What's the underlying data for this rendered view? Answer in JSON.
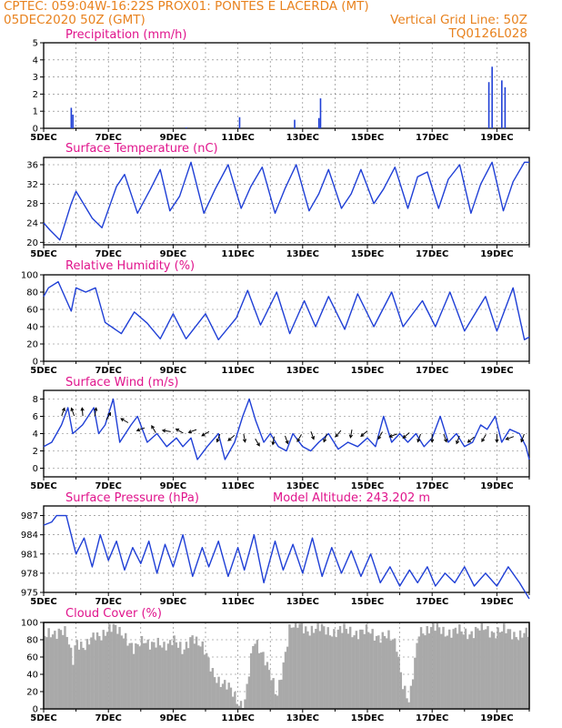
{
  "header": {
    "line1_left": "CPTEC:   059:04W-16:22S   PROX01: PONTES E LACERDA (MT)",
    "line2_left": "05DEC2020 50Z (GMT)",
    "line2_right": "Vertical Grid Line: 50Z",
    "line3_right": "TQ0126L028"
  },
  "colors": {
    "header": "#e8821e",
    "title": "#e0148c",
    "line": "#1f3fd6",
    "cloud": "#a9a9a9",
    "arrow": "#000000"
  },
  "x_ticks": [
    "5DEC",
    "7DEC",
    "9DEC",
    "11DEC",
    "13DEC",
    "15DEC",
    "17DEC",
    "19DEC"
  ],
  "chart_data": [
    {
      "id": "precip",
      "type": "bar",
      "title": "Precipitation (mm/h)",
      "x_unit": "day of December 2020",
      "xlim": [
        5,
        20
      ],
      "ylim": [
        0,
        5
      ],
      "yticks": [
        0,
        1,
        2,
        3,
        4,
        5
      ],
      "grid": true,
      "bars": [
        {
          "x": 5.85,
          "y": 1.2
        },
        {
          "x": 5.9,
          "y": 0.8
        },
        {
          "x": 9.4,
          "y": 0.05
        },
        {
          "x": 11.05,
          "y": 0.65
        },
        {
          "x": 12.75,
          "y": 0.5
        },
        {
          "x": 13.5,
          "y": 0.6
        },
        {
          "x": 13.55,
          "y": 1.75
        },
        {
          "x": 18.75,
          "y": 2.7
        },
        {
          "x": 18.85,
          "y": 3.6
        },
        {
          "x": 19.15,
          "y": 2.8
        },
        {
          "x": 19.25,
          "y": 2.4
        }
      ]
    },
    {
      "id": "temp",
      "type": "line",
      "title": "Surface Temperature (nC)",
      "x_unit": "day of December 2020",
      "xlim": [
        5,
        20
      ],
      "ylim": [
        19.5,
        37.5
      ],
      "yticks": [
        20,
        24,
        28,
        32,
        36
      ],
      "grid": true,
      "points": [
        [
          5.0,
          24
        ],
        [
          5.2,
          22.5
        ],
        [
          5.5,
          20.5
        ],
        [
          5.85,
          28
        ],
        [
          6.0,
          30.5
        ],
        [
          6.5,
          25
        ],
        [
          6.8,
          23
        ],
        [
          7.25,
          31.5
        ],
        [
          7.5,
          34
        ],
        [
          7.9,
          26
        ],
        [
          8.3,
          31
        ],
        [
          8.6,
          35
        ],
        [
          8.9,
          26.5
        ],
        [
          9.2,
          29.5
        ],
        [
          9.55,
          36.5
        ],
        [
          9.95,
          26
        ],
        [
          10.3,
          31
        ],
        [
          10.7,
          36
        ],
        [
          11.1,
          27
        ],
        [
          11.4,
          31.5
        ],
        [
          11.75,
          35.5
        ],
        [
          12.15,
          26
        ],
        [
          12.45,
          31
        ],
        [
          12.8,
          36
        ],
        [
          13.2,
          26.5
        ],
        [
          13.5,
          30
        ],
        [
          13.8,
          35
        ],
        [
          14.2,
          27
        ],
        [
          14.5,
          30
        ],
        [
          14.8,
          35
        ],
        [
          15.2,
          28
        ],
        [
          15.5,
          31
        ],
        [
          15.85,
          35.5
        ],
        [
          16.25,
          27
        ],
        [
          16.55,
          33.5
        ],
        [
          16.85,
          34.5
        ],
        [
          17.2,
          27
        ],
        [
          17.5,
          33
        ],
        [
          17.85,
          36
        ],
        [
          18.2,
          26
        ],
        [
          18.5,
          32
        ],
        [
          18.85,
          36.5
        ],
        [
          19.2,
          26.5
        ],
        [
          19.5,
          32.5
        ],
        [
          19.85,
          36.5
        ],
        [
          20.0,
          36.5
        ]
      ]
    },
    {
      "id": "rh",
      "type": "line",
      "title": "Relative Humidity (%)",
      "x_unit": "day of December 2020",
      "xlim": [
        5,
        20
      ],
      "ylim": [
        0,
        100
      ],
      "yticks": [
        0,
        20,
        40,
        60,
        80,
        100
      ],
      "grid": true,
      "points": [
        [
          5.0,
          75
        ],
        [
          5.15,
          85
        ],
        [
          5.45,
          92
        ],
        [
          5.85,
          58
        ],
        [
          6.0,
          85
        ],
        [
          6.3,
          80
        ],
        [
          6.6,
          85
        ],
        [
          6.9,
          45
        ],
        [
          7.4,
          32
        ],
        [
          7.8,
          57
        ],
        [
          8.2,
          44
        ],
        [
          8.6,
          26
        ],
        [
          9.0,
          55
        ],
        [
          9.4,
          26
        ],
        [
          10.0,
          55
        ],
        [
          10.4,
          25
        ],
        [
          10.95,
          50
        ],
        [
          11.3,
          82
        ],
        [
          11.7,
          42
        ],
        [
          12.2,
          80
        ],
        [
          12.6,
          32
        ],
        [
          13.05,
          70
        ],
        [
          13.4,
          40
        ],
        [
          13.8,
          75
        ],
        [
          14.3,
          37
        ],
        [
          14.7,
          78
        ],
        [
          15.2,
          40
        ],
        [
          15.75,
          80
        ],
        [
          16.1,
          40
        ],
        [
          16.7,
          70
        ],
        [
          17.1,
          40
        ],
        [
          17.55,
          80
        ],
        [
          18.0,
          35
        ],
        [
          18.65,
          75
        ],
        [
          19.0,
          35
        ],
        [
          19.5,
          85
        ],
        [
          19.85,
          25
        ],
        [
          20.0,
          28
        ]
      ]
    },
    {
      "id": "wind",
      "type": "line",
      "title": "Surface Wind (m/s)",
      "x_unit": "day of December 2020",
      "xlim": [
        5,
        20
      ],
      "ylim": [
        -1,
        9
      ],
      "yticks": [
        0,
        2,
        4,
        6,
        8
      ],
      "grid": true,
      "points": [
        [
          5.0,
          2.5
        ],
        [
          5.25,
          3
        ],
        [
          5.55,
          5
        ],
        [
          5.75,
          7
        ],
        [
          5.9,
          4
        ],
        [
          6.2,
          5
        ],
        [
          6.55,
          7
        ],
        [
          6.7,
          4
        ],
        [
          6.9,
          5
        ],
        [
          7.15,
          8
        ],
        [
          7.35,
          3
        ],
        [
          7.7,
          5
        ],
        [
          7.9,
          6
        ],
        [
          8.2,
          3
        ],
        [
          8.5,
          4
        ],
        [
          8.8,
          2.5
        ],
        [
          9.1,
          3.5
        ],
        [
          9.3,
          2.5
        ],
        [
          9.55,
          3.5
        ],
        [
          9.75,
          1
        ],
        [
          10.05,
          2.5
        ],
        [
          10.4,
          4
        ],
        [
          10.6,
          1
        ],
        [
          10.9,
          3
        ],
        [
          11.15,
          6
        ],
        [
          11.35,
          8
        ],
        [
          11.55,
          5.5
        ],
        [
          11.8,
          3
        ],
        [
          12.0,
          4
        ],
        [
          12.25,
          2.5
        ],
        [
          12.5,
          2
        ],
        [
          12.7,
          4
        ],
        [
          13.0,
          2.5
        ],
        [
          13.25,
          2
        ],
        [
          13.5,
          3
        ],
        [
          13.8,
          4
        ],
        [
          14.1,
          2.2
        ],
        [
          14.4,
          3
        ],
        [
          14.7,
          2.5
        ],
        [
          15.0,
          3.5
        ],
        [
          15.25,
          2.5
        ],
        [
          15.5,
          6
        ],
        [
          15.75,
          3
        ],
        [
          16.0,
          4
        ],
        [
          16.25,
          3
        ],
        [
          16.5,
          4
        ],
        [
          16.75,
          2.5
        ],
        [
          17.0,
          3.5
        ],
        [
          17.25,
          6
        ],
        [
          17.5,
          3
        ],
        [
          17.75,
          4
        ],
        [
          18.0,
          2.5
        ],
        [
          18.25,
          3
        ],
        [
          18.5,
          5
        ],
        [
          18.7,
          4.5
        ],
        [
          18.95,
          6
        ],
        [
          19.15,
          3
        ],
        [
          19.4,
          4.5
        ],
        [
          19.7,
          4
        ],
        [
          19.9,
          2.5
        ],
        [
          20.0,
          1
        ]
      ]
    },
    {
      "id": "pres",
      "type": "line",
      "title": "Surface Pressure (hPa)",
      "annotation": "Model Altitude: 243.202 m",
      "x_unit": "day of December 2020",
      "xlim": [
        5,
        20
      ],
      "ylim": [
        975,
        988.5
      ],
      "yticks": [
        975,
        978,
        981,
        984,
        987
      ],
      "grid": true,
      "points": [
        [
          5.0,
          985.5
        ],
        [
          5.25,
          986
        ],
        [
          5.4,
          987
        ],
        [
          5.7,
          987
        ],
        [
          6.0,
          981
        ],
        [
          6.25,
          983.5
        ],
        [
          6.5,
          979
        ],
        [
          6.75,
          984
        ],
        [
          7.0,
          980
        ],
        [
          7.25,
          983
        ],
        [
          7.5,
          978.5
        ],
        [
          7.75,
          982
        ],
        [
          8.0,
          979.5
        ],
        [
          8.25,
          983
        ],
        [
          8.5,
          978
        ],
        [
          8.75,
          982.5
        ],
        [
          9.0,
          979
        ],
        [
          9.3,
          984
        ],
        [
          9.6,
          977.5
        ],
        [
          9.9,
          982
        ],
        [
          10.1,
          979
        ],
        [
          10.4,
          983
        ],
        [
          10.7,
          977.5
        ],
        [
          11.0,
          982
        ],
        [
          11.2,
          978.5
        ],
        [
          11.5,
          984
        ],
        [
          11.8,
          976.5
        ],
        [
          12.15,
          983
        ],
        [
          12.4,
          978.5
        ],
        [
          12.7,
          982.5
        ],
        [
          13.0,
          978
        ],
        [
          13.3,
          983.5
        ],
        [
          13.6,
          977.5
        ],
        [
          13.9,
          982
        ],
        [
          14.2,
          978
        ],
        [
          14.5,
          981.5
        ],
        [
          14.8,
          977.5
        ],
        [
          15.1,
          981
        ],
        [
          15.4,
          976.5
        ],
        [
          15.7,
          979
        ],
        [
          16.0,
          976
        ],
        [
          16.3,
          978.5
        ],
        [
          16.55,
          976.5
        ],
        [
          16.85,
          979
        ],
        [
          17.1,
          976
        ],
        [
          17.4,
          978
        ],
        [
          17.7,
          976.5
        ],
        [
          18.0,
          979
        ],
        [
          18.3,
          976
        ],
        [
          18.65,
          978
        ],
        [
          19.0,
          976
        ],
        [
          19.35,
          979
        ],
        [
          19.7,
          976.5
        ],
        [
          20.0,
          974
        ]
      ]
    },
    {
      "id": "cloud",
      "type": "bar",
      "title": "Cloud Cover (%)",
      "x_unit": "day of December 2020",
      "xlim": [
        5,
        20
      ],
      "ylim": [
        0,
        100
      ],
      "yticks": [
        0,
        20,
        40,
        60,
        80,
        100
      ],
      "grid": true,
      "bin_width_days": 0.0625,
      "points": [
        [
          5.0,
          80
        ],
        [
          5.2,
          88
        ],
        [
          5.5,
          92
        ],
        [
          5.7,
          85
        ],
        [
          5.9,
          55
        ],
        [
          6.0,
          82
        ],
        [
          6.3,
          70
        ],
        [
          6.6,
          85
        ],
        [
          6.9,
          90
        ],
        [
          7.2,
          92
        ],
        [
          7.5,
          88
        ],
        [
          7.8,
          65
        ],
        [
          8.1,
          82
        ],
        [
          8.4,
          75
        ],
        [
          8.7,
          70
        ],
        [
          9.0,
          85
        ],
        [
          9.3,
          62
        ],
        [
          9.6,
          88
        ],
        [
          9.9,
          70
        ],
        [
          10.2,
          45
        ],
        [
          10.5,
          30
        ],
        [
          10.8,
          20
        ],
        [
          11.0,
          10
        ],
        [
          11.2,
          5
        ],
        [
          11.5,
          78
        ],
        [
          11.8,
          65
        ],
        [
          12.0,
          40
        ],
        [
          12.2,
          10
        ],
        [
          12.6,
          96
        ],
        [
          13.0,
          94
        ],
        [
          13.5,
          92
        ],
        [
          14.0,
          90
        ],
        [
          14.5,
          90
        ],
        [
          15.0,
          88
        ],
        [
          15.5,
          85
        ],
        [
          15.9,
          75
        ],
        [
          16.1,
          30
        ],
        [
          16.3,
          5
        ],
        [
          16.6,
          92
        ],
        [
          17.0,
          93
        ],
        [
          17.5,
          90
        ],
        [
          18.0,
          88
        ],
        [
          18.5,
          92
        ],
        [
          19.0,
          90
        ],
        [
          19.5,
          88
        ],
        [
          20.0,
          85
        ]
      ]
    },
    {
      "id": "wind_vectors",
      "type": "scatter",
      "x_unit": "day of December 2020",
      "note_fields": [
        "x",
        "speed",
        "direction_deg_to"
      ],
      "arrows": [
        [
          5.6,
          6.5,
          20
        ],
        [
          5.9,
          6.5,
          340
        ],
        [
          6.2,
          6.5,
          355
        ],
        [
          6.6,
          6.5,
          10
        ],
        [
          7.0,
          6.0,
          30
        ],
        [
          7.5,
          5.5,
          300
        ],
        [
          8.0,
          4.5,
          250
        ],
        [
          8.4,
          4.5,
          330
        ],
        [
          8.8,
          4.3,
          280
        ],
        [
          9.2,
          4.3,
          300
        ],
        [
          9.6,
          4.3,
          250
        ],
        [
          10.0,
          4.0,
          240
        ],
        [
          10.4,
          3.5,
          200
        ],
        [
          10.8,
          3.5,
          230
        ],
        [
          11.2,
          3.5,
          170
        ],
        [
          11.6,
          3.0,
          150
        ],
        [
          12.1,
          3.2,
          190
        ],
        [
          12.5,
          3.3,
          160
        ],
        [
          12.9,
          3.5,
          210
        ],
        [
          13.3,
          3.8,
          160
        ],
        [
          13.7,
          3.5,
          200
        ],
        [
          14.1,
          4.0,
          220
        ],
        [
          14.5,
          4.0,
          190
        ],
        [
          14.9,
          4.0,
          230
        ],
        [
          15.4,
          3.8,
          210
        ],
        [
          15.8,
          3.8,
          250
        ],
        [
          16.2,
          3.8,
          230
        ],
        [
          16.6,
          3.5,
          200
        ],
        [
          17.0,
          3.5,
          180
        ],
        [
          17.4,
          3.5,
          160
        ],
        [
          17.8,
          3.3,
          200
        ],
        [
          18.2,
          3.3,
          230
        ],
        [
          18.6,
          3.5,
          210
        ],
        [
          19.0,
          3.5,
          180
        ],
        [
          19.4,
          3.5,
          250
        ],
        [
          19.8,
          3.5,
          200
        ]
      ]
    }
  ]
}
